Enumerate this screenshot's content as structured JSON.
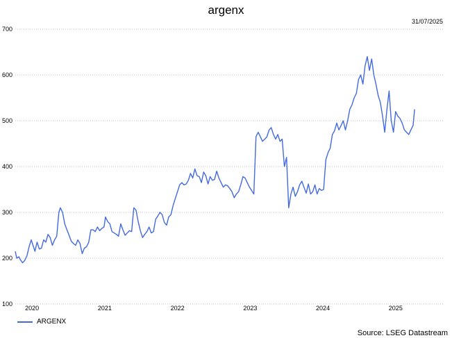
{
  "chart_data": {
    "type": "line",
    "title": "argenx",
    "date_label": "31/07/2025",
    "source": "Source: LSEG Datastream",
    "ylim": [
      100,
      700
    ],
    "yticks": [
      100,
      200,
      300,
      400,
      500,
      600,
      700
    ],
    "xlim": [
      2019.7,
      2025.6
    ],
    "xticks": [
      {
        "label": "2020",
        "x": 2019.93
      },
      {
        "label": "2021",
        "x": 2020.93
      },
      {
        "label": "2022",
        "x": 2021.93
      },
      {
        "label": "2023",
        "x": 2022.93
      },
      {
        "label": "2024",
        "x": 2023.93
      },
      {
        "label": "2025",
        "x": 2024.93
      }
    ],
    "grid": true,
    "legend": "bottom-left",
    "series": [
      {
        "name": "ARGENX",
        "color": "#4169e1",
        "points": [
          [
            2019.7,
            215
          ],
          [
            2019.72,
            200
          ],
          [
            2019.75,
            203
          ],
          [
            2019.77,
            197
          ],
          [
            2019.8,
            190
          ],
          [
            2019.83,
            195
          ],
          [
            2019.86,
            205
          ],
          [
            2019.89,
            225
          ],
          [
            2019.92,
            240
          ],
          [
            2019.95,
            225
          ],
          [
            2019.97,
            215
          ],
          [
            2020.0,
            235
          ],
          [
            2020.03,
            220
          ],
          [
            2020.06,
            222
          ],
          [
            2020.09,
            240
          ],
          [
            2020.12,
            235
          ],
          [
            2020.15,
            252
          ],
          [
            2020.18,
            245
          ],
          [
            2020.21,
            228
          ],
          [
            2020.24,
            240
          ],
          [
            2020.27,
            248
          ],
          [
            2020.3,
            300
          ],
          [
            2020.32,
            310
          ],
          [
            2020.35,
            300
          ],
          [
            2020.38,
            275
          ],
          [
            2020.41,
            262
          ],
          [
            2020.44,
            250
          ],
          [
            2020.47,
            237
          ],
          [
            2020.5,
            232
          ],
          [
            2020.53,
            228
          ],
          [
            2020.56,
            240
          ],
          [
            2020.59,
            232
          ],
          [
            2020.62,
            210
          ],
          [
            2020.65,
            222
          ],
          [
            2020.68,
            225
          ],
          [
            2020.71,
            235
          ],
          [
            2020.74,
            262
          ],
          [
            2020.77,
            262
          ],
          [
            2020.8,
            258
          ],
          [
            2020.83,
            268
          ],
          [
            2020.86,
            260
          ],
          [
            2020.89,
            265
          ],
          [
            2020.92,
            268
          ],
          [
            2020.94,
            290
          ],
          [
            2020.97,
            280
          ],
          [
            2021.0,
            275
          ],
          [
            2021.03,
            258
          ],
          [
            2021.06,
            255
          ],
          [
            2021.09,
            252
          ],
          [
            2021.12,
            248
          ],
          [
            2021.15,
            275
          ],
          [
            2021.18,
            262
          ],
          [
            2021.21,
            250
          ],
          [
            2021.24,
            255
          ],
          [
            2021.27,
            260
          ],
          [
            2021.3,
            258
          ],
          [
            2021.33,
            310
          ],
          [
            2021.36,
            305
          ],
          [
            2021.39,
            280
          ],
          [
            2021.42,
            260
          ],
          [
            2021.45,
            245
          ],
          [
            2021.48,
            252
          ],
          [
            2021.51,
            258
          ],
          [
            2021.54,
            268
          ],
          [
            2021.57,
            255
          ],
          [
            2021.6,
            258
          ],
          [
            2021.63,
            285
          ],
          [
            2021.66,
            292
          ],
          [
            2021.69,
            300
          ],
          [
            2021.72,
            295
          ],
          [
            2021.75,
            278
          ],
          [
            2021.78,
            272
          ],
          [
            2021.81,
            290
          ],
          [
            2021.84,
            295
          ],
          [
            2021.87,
            315
          ],
          [
            2021.9,
            330
          ],
          [
            2021.93,
            345
          ],
          [
            2021.96,
            360
          ],
          [
            2021.99,
            365
          ],
          [
            2022.02,
            360
          ],
          [
            2022.05,
            362
          ],
          [
            2022.08,
            370
          ],
          [
            2022.11,
            385
          ],
          [
            2022.14,
            375
          ],
          [
            2022.17,
            395
          ],
          [
            2022.2,
            380
          ],
          [
            2022.23,
            378
          ],
          [
            2022.26,
            365
          ],
          [
            2022.29,
            388
          ],
          [
            2022.32,
            380
          ],
          [
            2022.35,
            362
          ],
          [
            2022.38,
            378
          ],
          [
            2022.41,
            370
          ],
          [
            2022.44,
            372
          ],
          [
            2022.47,
            390
          ],
          [
            2022.5,
            375
          ],
          [
            2022.53,
            365
          ],
          [
            2022.56,
            355
          ],
          [
            2022.59,
            360
          ],
          [
            2022.62,
            358
          ],
          [
            2022.65,
            352
          ],
          [
            2022.68,
            345
          ],
          [
            2022.71,
            332
          ],
          [
            2022.74,
            340
          ],
          [
            2022.77,
            345
          ],
          [
            2022.8,
            360
          ],
          [
            2022.83,
            378
          ],
          [
            2022.86,
            375
          ],
          [
            2022.89,
            365
          ],
          [
            2022.92,
            355
          ],
          [
            2022.95,
            348
          ],
          [
            2022.98,
            340
          ],
          [
            2023.01,
            465
          ],
          [
            2023.04,
            475
          ],
          [
            2023.07,
            465
          ],
          [
            2023.1,
            455
          ],
          [
            2023.13,
            460
          ],
          [
            2023.16,
            465
          ],
          [
            2023.19,
            480
          ],
          [
            2023.22,
            485
          ],
          [
            2023.25,
            470
          ],
          [
            2023.28,
            460
          ],
          [
            2023.31,
            470
          ],
          [
            2023.34,
            455
          ],
          [
            2023.37,
            460
          ],
          [
            2023.4,
            400
          ],
          [
            2023.43,
            420
          ],
          [
            2023.46,
            310
          ],
          [
            2023.49,
            340
          ],
          [
            2023.52,
            355
          ],
          [
            2023.55,
            335
          ],
          [
            2023.58,
            345
          ],
          [
            2023.61,
            360
          ],
          [
            2023.64,
            368
          ],
          [
            2023.67,
            355
          ],
          [
            2023.7,
            342
          ],
          [
            2023.73,
            362
          ],
          [
            2023.76,
            340
          ],
          [
            2023.79,
            345
          ],
          [
            2023.82,
            360
          ],
          [
            2023.85,
            340
          ],
          [
            2023.88,
            352
          ],
          [
            2023.91,
            348
          ],
          [
            2023.94,
            350
          ],
          [
            2023.97,
            415
          ],
          [
            2024.0,
            430
          ],
          [
            2024.03,
            440
          ],
          [
            2024.06,
            470
          ],
          [
            2024.09,
            478
          ],
          [
            2024.12,
            495
          ],
          [
            2024.15,
            480
          ],
          [
            2024.18,
            490
          ],
          [
            2024.21,
            500
          ],
          [
            2024.24,
            480
          ],
          [
            2024.27,
            500
          ],
          [
            2024.3,
            525
          ],
          [
            2024.33,
            535
          ],
          [
            2024.36,
            550
          ],
          [
            2024.39,
            560
          ],
          [
            2024.42,
            590
          ],
          [
            2024.45,
            600
          ],
          [
            2024.48,
            580
          ],
          [
            2024.51,
            620
          ],
          [
            2024.54,
            640
          ],
          [
            2024.57,
            610
          ],
          [
            2024.6,
            635
          ],
          [
            2024.63,
            600
          ],
          [
            2024.66,
            580
          ],
          [
            2024.69,
            555
          ],
          [
            2024.72,
            540
          ],
          [
            2024.75,
            510
          ],
          [
            2024.78,
            475
          ],
          [
            2024.81,
            525
          ],
          [
            2024.84,
            565
          ],
          [
            2024.87,
            500
          ],
          [
            2024.9,
            475
          ],
          [
            2024.93,
            520
          ],
          [
            2024.96,
            510
          ],
          [
            2024.99,
            505
          ],
          [
            2025.02,
            495
          ],
          [
            2025.05,
            480
          ],
          [
            2025.08,
            475
          ],
          [
            2025.11,
            470
          ],
          [
            2025.14,
            480
          ],
          [
            2025.17,
            490
          ],
          [
            2025.19,
            525
          ]
        ]
      }
    ]
  }
}
